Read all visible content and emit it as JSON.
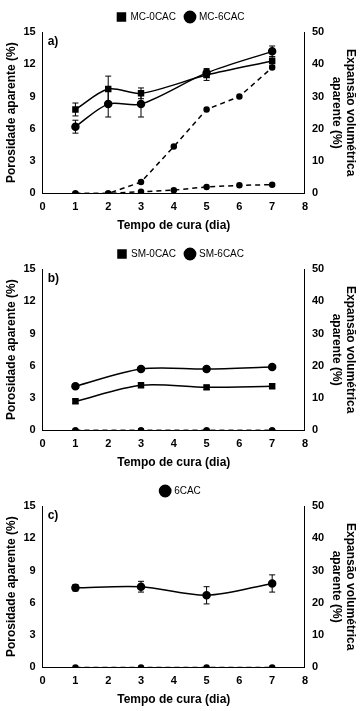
{
  "chart_data": [
    {
      "type": "line",
      "title": "a)",
      "x_label": "Tempo de cura (dia)",
      "y_label": "Porosidade aparente (%)",
      "y2_label": [
        "Expansão volumétrica",
        "aparente (%)"
      ],
      "xlim": [
        0,
        8
      ],
      "xticks": [
        0,
        1,
        2,
        3,
        4,
        5,
        6,
        7,
        8
      ],
      "ylim": [
        0,
        15
      ],
      "yticks": [
        0,
        3,
        6,
        9,
        12,
        15
      ],
      "y2lim": [
        0,
        50
      ],
      "y2ticks": [
        0,
        10,
        20,
        30,
        40,
        50
      ],
      "legend": "top",
      "grid": false,
      "series": [
        {
          "name": "MC-0CAC",
          "color": "#000000",
          "marker": "square",
          "line_style": "solid",
          "x": [
            1,
            2,
            3,
            5,
            7
          ],
          "values": [
            7.8,
            9.7,
            9.3,
            11.0,
            12.3
          ],
          "errors": [
            0.6,
            1.2,
            0.5,
            0.5,
            0.4
          ]
        },
        {
          "name": "MC-6CAC",
          "color": "#000000",
          "marker": "circle",
          "line_style": "solid",
          "x": [
            1,
            2,
            3,
            5,
            7
          ],
          "values": [
            6.2,
            8.3,
            8.3,
            11.2,
            13.2
          ],
          "errors": [
            0.6,
            1.2,
            1.2,
            0.4,
            0.5
          ]
        },
        {
          "color": "#000000",
          "marker": "circle",
          "line_style": "dashed",
          "axis": "y2",
          "x": [
            1,
            2,
            3,
            4,
            5,
            6,
            7
          ],
          "values": [
            0,
            0,
            3.5,
            14.5,
            26,
            30,
            39
          ]
        },
        {
          "color": "#000000",
          "marker": "circle",
          "line_style": "dashed",
          "axis": "y2",
          "x": [
            1,
            2,
            3,
            4,
            5,
            6,
            7
          ],
          "values": [
            0,
            0,
            0.5,
            1,
            2,
            2.5,
            2.7
          ]
        }
      ]
    },
    {
      "type": "line",
      "title": "b)",
      "x_label": "Tempo de cura (dia)",
      "y_label": "Porosidade aparente (%)",
      "y2_label": [
        "Expansão volumétrica",
        "aparente (%)"
      ],
      "xlim": [
        0,
        8
      ],
      "xticks": [
        0,
        1,
        2,
        3,
        4,
        5,
        6,
        7,
        8
      ],
      "ylim": [
        0,
        15
      ],
      "yticks": [
        0,
        3,
        6,
        9,
        12,
        15
      ],
      "y2lim": [
        0,
        50
      ],
      "y2ticks": [
        0,
        10,
        20,
        30,
        40,
        50
      ],
      "legend": "top",
      "grid": false,
      "series": [
        {
          "name": "SM-0CAC",
          "color": "#000000",
          "marker": "square",
          "line_style": "solid",
          "x": [
            1,
            3,
            5,
            7
          ],
          "values": [
            2.7,
            4.2,
            4.0,
            4.1
          ],
          "errors": [
            0.2,
            0.2,
            0.2,
            0.2
          ]
        },
        {
          "name": "SM-6CAC",
          "color": "#000000",
          "marker": "circle",
          "line_style": "solid",
          "x": [
            1,
            3,
            5,
            7
          ],
          "values": [
            4.1,
            5.7,
            5.7,
            5.9
          ],
          "errors": [
            0.2,
            0.2,
            0.2,
            0.2
          ]
        },
        {
          "color": "#000000",
          "marker": "circle",
          "line_style": "dashed",
          "axis": "y2",
          "x": [
            1,
            3,
            5,
            7
          ],
          "values": [
            0,
            0,
            0,
            0
          ]
        },
        {
          "color": "#000000",
          "marker": "circle",
          "line_style": "dashed",
          "axis": "y2",
          "x": [
            1,
            3,
            5,
            7
          ],
          "values": [
            0,
            0,
            0,
            0
          ]
        }
      ]
    },
    {
      "type": "line",
      "title": "c)",
      "x_label": "Tempo de cura (dia)",
      "y_label": "Porosidade aparente (%)",
      "y2_label": [
        "Expansão volumétrica",
        "aparente (%)"
      ],
      "xlim": [
        0,
        8
      ],
      "xticks": [
        0,
        1,
        2,
        3,
        4,
        5,
        6,
        7,
        8
      ],
      "ylim": [
        0,
        15
      ],
      "yticks": [
        0,
        3,
        6,
        9,
        12,
        15
      ],
      "y2lim": [
        0,
        50
      ],
      "y2ticks": [
        0,
        10,
        20,
        30,
        40,
        50
      ],
      "legend": "top",
      "grid": false,
      "series": [
        {
          "name": "6CAC",
          "color": "#000000",
          "marker": "circle",
          "line_style": "solid",
          "x": [
            1,
            3,
            5,
            7
          ],
          "values": [
            7.4,
            7.5,
            6.7,
            7.8
          ],
          "errors": [
            0.3,
            0.5,
            0.8,
            0.8
          ]
        },
        {
          "color": "#000000",
          "marker": "circle",
          "line_style": "dashed",
          "axis": "y2",
          "x": [
            1,
            3,
            5,
            7
          ],
          "values": [
            0,
            0,
            0,
            0
          ]
        }
      ]
    }
  ]
}
